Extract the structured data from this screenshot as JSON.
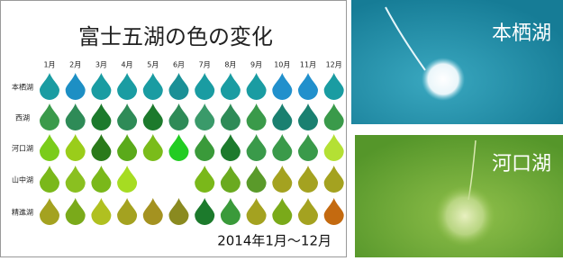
{
  "title": "富士五湖の色の変化",
  "months": [
    "1月",
    "2月",
    "3月",
    "4月",
    "5月",
    "6月",
    "7月",
    "8月",
    "9月",
    "10月",
    "11月",
    "12月"
  ],
  "lakes": [
    {
      "name": "本栖湖",
      "colors": [
        "#1a9ca2",
        "#1d8fc4",
        "#1a9ca2",
        "#1a9ca2",
        "#1a9ca2",
        "#1a9096",
        "#1a9ca2",
        "#1a9ca2",
        "#1a9ca2",
        "#2190cc",
        "#2190cc",
        "#1a9ca2"
      ]
    },
    {
      "name": "西湖",
      "colors": [
        "#3a9a4a",
        "#2e8b57",
        "#1c7a2c",
        "#2e8b57",
        "#1c7a2c",
        "#2e8b57",
        "#3a9a6a",
        "#2e8b57",
        "#3a9a4a",
        "#1a8070",
        "#1a8070",
        "#3a9a4a"
      ]
    },
    {
      "name": "河口湖",
      "colors": [
        "#7acc1a",
        "#9acd1a",
        "#2a7a1a",
        "#5aaa1a",
        "#7abc1a",
        "#22cc22",
        "#3a9a3a",
        "#1c7a2c",
        "#3a9a4a",
        "#3a9a4a",
        "#3a9a4a",
        "#b4e034"
      ]
    },
    {
      "name": "山中湖",
      "colors": [
        "#7ab81a",
        "#8ac020",
        "#7ab81a",
        "#a6dc22",
        null,
        null,
        "#7ab81a",
        "#6aaa20",
        "#5a9a2a",
        "#a4a220",
        "#a4a220",
        "#a4a220"
      ]
    },
    {
      "name": "精進湖",
      "colors": [
        "#a4a220",
        "#7aaa1a",
        "#b0c020",
        "#a4a220",
        "#a49220",
        "#8a8a20",
        "#1c7a2c",
        "#3a9a3a",
        "#a4a220",
        "#7aaa1a",
        "#a4a220",
        "#c46a10"
      ]
    }
  ],
  "period": "2014年1月～12月",
  "photos": [
    "本栖湖",
    "河口湖"
  ]
}
